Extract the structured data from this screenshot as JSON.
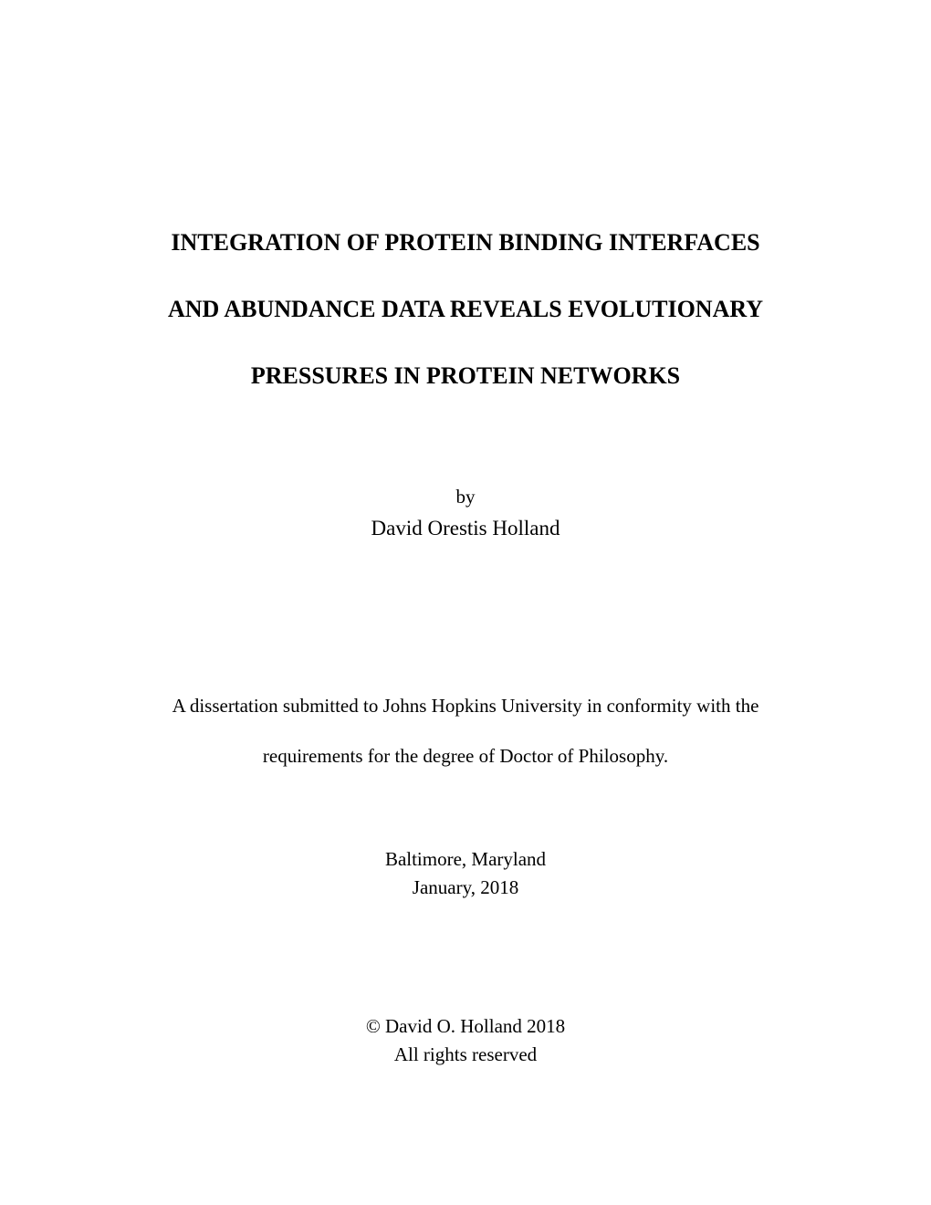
{
  "title": {
    "line1": "INTEGRATION OF PROTEIN BINDING INTERFACES",
    "line2": "AND ABUNDANCE DATA REVEALS EVOLUTIONARY",
    "line3": "PRESSURES IN PROTEIN NETWORKS"
  },
  "byline": "by",
  "author": "David Orestis Holland",
  "submission": {
    "line1": "A dissertation submitted to Johns Hopkins University in conformity with the",
    "line2": "requirements for the degree of Doctor of Philosophy."
  },
  "location": "Baltimore, Maryland",
  "date": "January, 2018",
  "copyright": {
    "line1": "© David O. Holland 2018",
    "line2": "All rights reserved"
  },
  "colors": {
    "background": "#ffffff",
    "text": "#000000"
  },
  "typography": {
    "font_family": "Times New Roman",
    "title_fontsize": 26,
    "title_weight": "bold",
    "body_fontsize": 21,
    "author_fontsize": 23
  }
}
